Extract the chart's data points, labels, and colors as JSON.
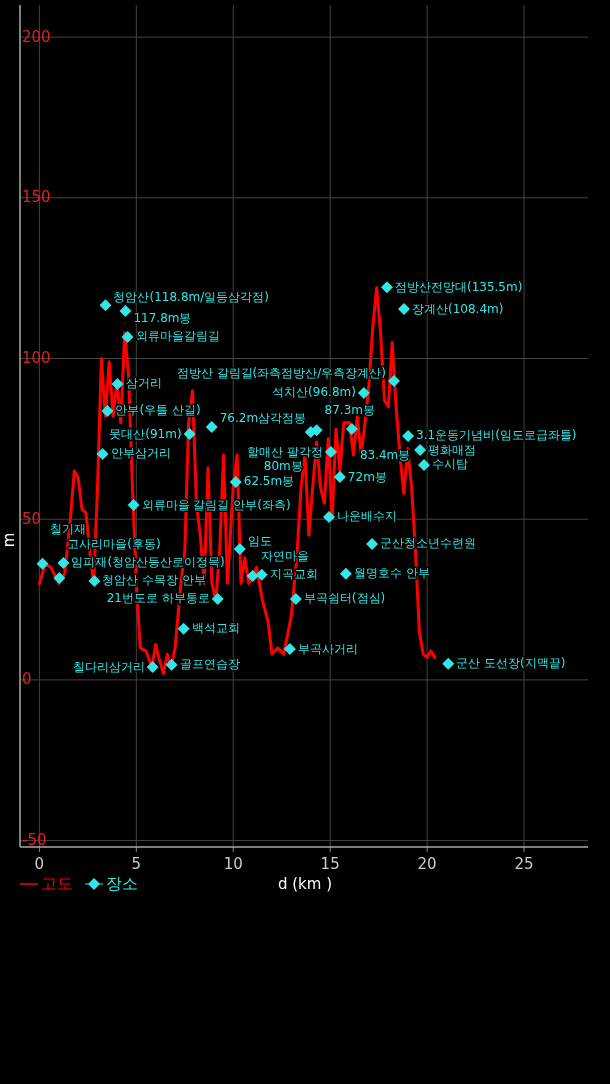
{
  "chart_data": {
    "type": "line",
    "xlabel": "d (km )",
    "ylabel": "m",
    "xlim": [
      -1,
      28.3
    ],
    "ylim": [
      -52,
      210
    ],
    "xticks": [
      0,
      5,
      10,
      15,
      20,
      25
    ],
    "yticks": [
      -50,
      0,
      50,
      100,
      150,
      200
    ],
    "grid": true,
    "legend": "bottom left",
    "series": [
      {
        "name": "고도",
        "color": "#ff0000",
        "marker": "none",
        "line_style": "solid",
        "x": [
          0,
          0.3,
          0.6,
          1.0,
          1.3,
          1.6,
          1.8,
          2.0,
          2.2,
          2.4,
          2.6,
          2.8,
          3.0,
          3.2,
          3.4,
          3.6,
          3.8,
          4.0,
          4.2,
          4.4,
          4.6,
          4.8,
          5.0,
          5.2,
          5.5,
          5.8,
          6.0,
          6.2,
          6.4,
          6.6,
          6.8,
          7.0,
          7.3,
          7.5,
          7.7,
          7.9,
          8.1,
          8.3,
          8.5,
          8.7,
          8.9,
          9.1,
          9.3,
          9.5,
          9.7,
          10.0,
          10.2,
          10.4,
          10.6,
          10.8,
          11.2,
          11.5,
          11.8,
          12.0,
          12.3,
          12.6,
          13.0,
          13.3,
          13.5,
          13.7,
          13.9,
          14.1,
          14.3,
          14.5,
          14.7,
          14.9,
          15.1,
          15.3,
          15.5,
          15.7,
          16.0,
          16.2,
          16.4,
          16.6,
          16.8,
          17.0,
          17.2,
          17.4,
          17.6,
          17.8,
          18.0,
          18.2,
          18.4,
          18.6,
          18.8,
          19.0,
          19.2,
          19.4,
          19.6,
          19.8,
          20.0,
          20.2,
          20.4
        ],
        "values": [
          30,
          36,
          35,
          30,
          33,
          50,
          65,
          63,
          53,
          52,
          40,
          30,
          60,
          100,
          82,
          99,
          82,
          93,
          80,
          108,
          95,
          60,
          30,
          10,
          9,
          4,
          11,
          6,
          2,
          8,
          4,
          10,
          30,
          40,
          80,
          90,
          55,
          45,
          30,
          66,
          30,
          25,
          40,
          70,
          30,
          60,
          70,
          30,
          38,
          30,
          35,
          25,
          18,
          8,
          10,
          8,
          20,
          40,
          60,
          70,
          45,
          60,
          74,
          60,
          55,
          75,
          50,
          78,
          65,
          80,
          80,
          70,
          82,
          70,
          80,
          92,
          110,
          122,
          108,
          87,
          85,
          105,
          85,
          70,
          58,
          72,
          60,
          40,
          15,
          8,
          7,
          9,
          7
        ]
      },
      {
        "name": "장소",
        "type": "scatter",
        "color": "#33e6e6",
        "marker": "diamond",
        "x": [
          3.41,
          4.44,
          4.55,
          4.03,
          3.51,
          7.75,
          8.89,
          3.26,
          10.13,
          4.86,
          0.16,
          1.24,
          1.03,
          2.84,
          10.34,
          9.2,
          13.23,
          7.44,
          5.84,
          6.82,
          11.0,
          11.47,
          12.92,
          15.81,
          17.16,
          14.94,
          15.5,
          15.04,
          14.0,
          14.3,
          16.12,
          16.74,
          17.93,
          18.81,
          18.29,
          19.02,
          19.64,
          19.84,
          21.09
        ],
        "values": [
          116.6,
          114.8,
          106.7,
          92.1,
          83.7,
          76.5,
          78.7,
          70.3,
          61.6,
          54.4,
          36.1,
          36.4,
          31.7,
          30.8,
          40.7,
          25.2,
          25.2,
          15.9,
          4.0,
          4.7,
          32.3,
          32.7,
          9.6,
          33.0,
          42.3,
          50.7,
          63.1,
          70.9,
          77.1,
          77.7,
          78.1,
          89.3,
          122.2,
          115.4,
          93.0,
          75.9,
          71.5,
          66.9,
          5.0
        ]
      }
    ],
    "annotations": [
      {
        "text": "청암산(118.8m/일등삼각점)",
        "x": 3.41,
        "y": 116.6
      },
      {
        "text": "117.8m봉",
        "x": 4.44,
        "y": 114.8
      },
      {
        "text": "외류마을갈림길",
        "x": 4.55,
        "y": 106.7
      },
      {
        "text": "삼거리",
        "x": 4.03,
        "y": 92.1
      },
      {
        "text": "안부(우틀 산길)",
        "x": 3.51,
        "y": 83.7
      },
      {
        "text": "못대산(91m)",
        "x": 7.75,
        "y": 76.5
      },
      {
        "text": "76.2m삼각점봉",
        "x": 8.89,
        "y": 78.7
      },
      {
        "text": "안부삼거리",
        "x": 3.26,
        "y": 70.3
      },
      {
        "text": "62.5m봉",
        "x": 10.13,
        "y": 61.6
      },
      {
        "text": "외류마을 갈림길 안부(좌측)",
        "x": 4.86,
        "y": 54.4
      },
      {
        "text": "칠기재",
        "x": 0.16,
        "y": 36.1
      },
      {
        "text": "임피재(청암산등산로이정목)",
        "x": 1.24,
        "y": 36.4
      },
      {
        "text": "고사리마을(후동)",
        "x": 1.03,
        "y": 31.7
      },
      {
        "text": "청암산 수목장 안부",
        "x": 2.84,
        "y": 30.8
      },
      {
        "text": "임도",
        "x": 10.34,
        "y": 40.7
      },
      {
        "text": "21번도로 하부통로",
        "x": 9.2,
        "y": 25.2
      },
      {
        "text": "부곡쉼터(점심)",
        "x": 13.23,
        "y": 25.2
      },
      {
        "text": "백석교회",
        "x": 7.44,
        "y": 15.9
      },
      {
        "text": "칠다리삼거리",
        "x": 5.84,
        "y": 4.0
      },
      {
        "text": "골프연습장",
        "x": 6.82,
        "y": 4.7
      },
      {
        "text": "자연마을",
        "x": 11.0,
        "y": 32.3
      },
      {
        "text": "지곡교회",
        "x": 11.47,
        "y": 32.7
      },
      {
        "text": "부곡사거리",
        "x": 12.92,
        "y": 9.6
      },
      {
        "text": "월명호수 안부",
        "x": 15.81,
        "y": 33.0
      },
      {
        "text": "군산청소년수련원",
        "x": 17.16,
        "y": 42.3
      },
      {
        "text": "나운배수지",
        "x": 14.94,
        "y": 50.7
      },
      {
        "text": "72m봉",
        "x": 15.5,
        "y": 63.1
      },
      {
        "text": "할매산 팔각정",
        "x": 15.04,
        "y": 70.9
      },
      {
        "text": "80m봉",
        "x": 14.0,
        "y": 77.1
      },
      {
        "text": "87.3m봉",
        "x": 14.3,
        "y": 77.7
      },
      {
        "text": "83.4m봉",
        "x": 16.12,
        "y": 78.1
      },
      {
        "text": "석치산(96.8m)",
        "x": 16.74,
        "y": 89.3
      },
      {
        "text": "점방산전망대(135.5m)",
        "x": 17.93,
        "y": 122.2
      },
      {
        "text": "장계산(108.4m)",
        "x": 18.81,
        "y": 115.4
      },
      {
        "text": "점방산 갈림길(좌측점방산/우측장계산)",
        "x": 18.29,
        "y": 93.0
      },
      {
        "text": "3.1운동기념비(임도로급좌틀)",
        "x": 19.02,
        "y": 75.9
      },
      {
        "text": "평화매점",
        "x": 19.64,
        "y": 71.5
      },
      {
        "text": "수시탑",
        "x": 19.84,
        "y": 66.9
      },
      {
        "text": "군산 도선장(지맥끝)",
        "x": 21.09,
        "y": 5.0
      }
    ]
  }
}
